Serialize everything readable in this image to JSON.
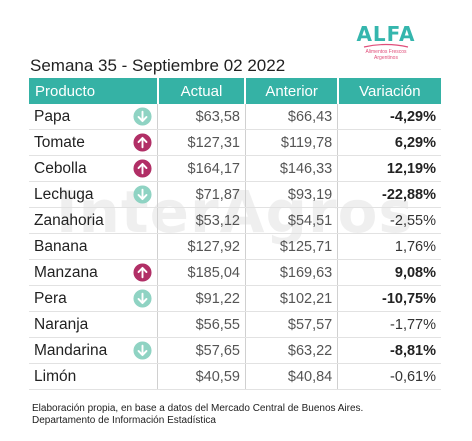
{
  "header": {
    "title": "Semana 35 - Septiembre 02 2022"
  },
  "logo": {
    "word": "ALFA",
    "subtitle_line1": "Alimentos Frescos",
    "subtitle_line2": "Argentinos"
  },
  "watermark": "InterAgros",
  "colors": {
    "header_bg": "#35b2a5",
    "up": "#b12f66",
    "down": "#8fd3c3"
  },
  "table": {
    "columns": [
      "Producto",
      "Actual",
      "Anterior",
      "Variación"
    ],
    "rows": [
      {
        "product": "Papa",
        "trend": "down",
        "actual": "$63,58",
        "previous": "$66,43",
        "variation": "-4,29%",
        "bold": true
      },
      {
        "product": "Tomate",
        "trend": "up",
        "actual": "$127,31",
        "previous": "$119,78",
        "variation": "6,29%",
        "bold": true
      },
      {
        "product": "Cebolla",
        "trend": "up",
        "actual": "$164,17",
        "previous": "$146,33",
        "variation": "12,19%",
        "bold": true
      },
      {
        "product": "Lechuga",
        "trend": "down",
        "actual": "$71,87",
        "previous": "$93,19",
        "variation": "-22,88%",
        "bold": true
      },
      {
        "product": "Zanahoria",
        "trend": "",
        "actual": "$53,12",
        "previous": "$54,51",
        "variation": "-2,55%",
        "bold": false
      },
      {
        "product": "Banana",
        "trend": "",
        "actual": "$127,92",
        "previous": "$125,71",
        "variation": "1,76%",
        "bold": false
      },
      {
        "product": "Manzana",
        "trend": "up",
        "actual": "$185,04",
        "previous": "$169,63",
        "variation": "9,08%",
        "bold": true
      },
      {
        "product": "Pera",
        "trend": "down",
        "actual": "$91,22",
        "previous": "$102,21",
        "variation": "-10,75%",
        "bold": true
      },
      {
        "product": "Naranja",
        "trend": "",
        "actual": "$56,55",
        "previous": "$57,57",
        "variation": "-1,77%",
        "bold": false
      },
      {
        "product": "Mandarina",
        "trend": "down",
        "actual": "$57,65",
        "previous": "$63,22",
        "variation": "-8,81%",
        "bold": true
      },
      {
        "product": "Limón",
        "trend": "",
        "actual": "$40,59",
        "previous": "$40,84",
        "variation": "-0,61%",
        "bold": false
      }
    ]
  },
  "footer": {
    "line1": "Elaboración propia, en base a datos del Mercado Central de Buenos Aires.",
    "line2": "Departamento de Información Estadística"
  }
}
